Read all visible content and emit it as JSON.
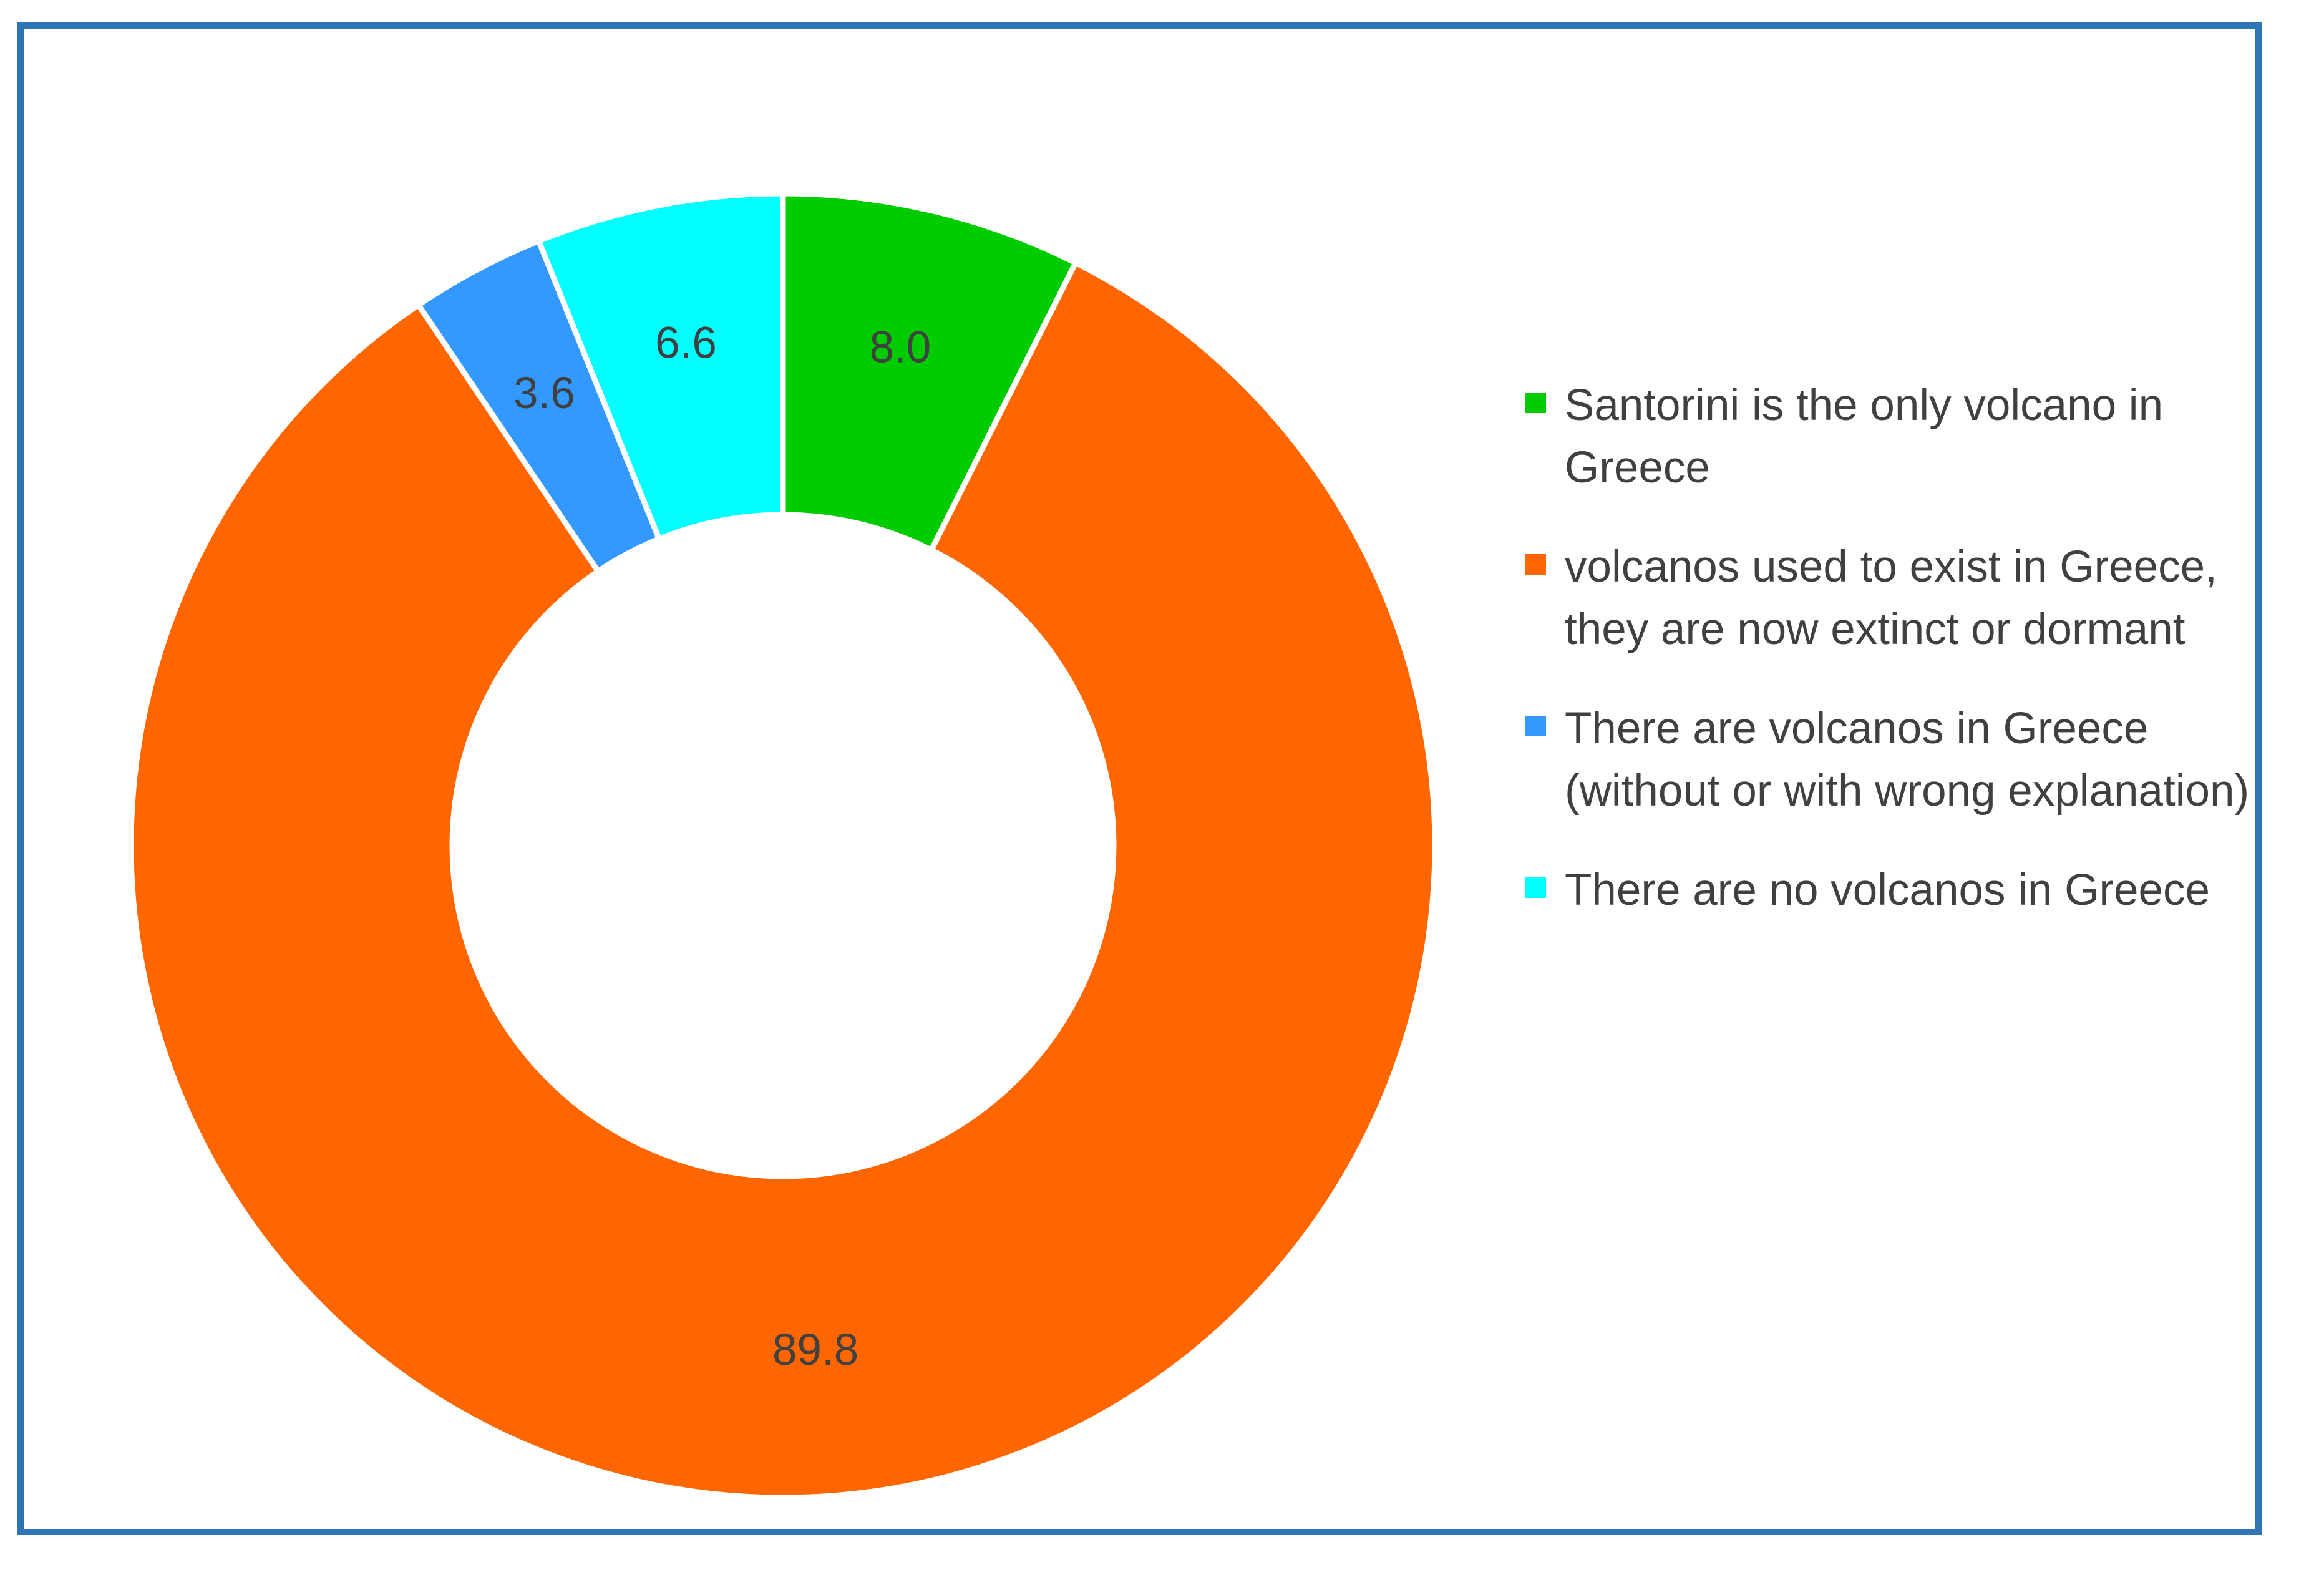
{
  "chart_data": {
    "type": "pie",
    "variant": "donut",
    "title": "",
    "series": [
      {
        "label": "Santorini is the only volcano in Greece",
        "value": 8.0,
        "value_label": "8.0",
        "color": "#00cc00"
      },
      {
        "label": "volcanos used to exist in Greece, they are now extinct or dormant",
        "value": 89.8,
        "value_label": "89.8",
        "color": "#ff6600"
      },
      {
        "label": "There are volcanos in Greece (without or with wrong explanation)",
        "value": 3.6,
        "value_label": "3.6",
        "color": "#3399ff"
      },
      {
        "label": "There are no volcanos in Greece",
        "value": 6.6,
        "value_label": "6.6",
        "color": "#00ffff"
      }
    ],
    "legend_position": "right",
    "start_angle_deg": 0,
    "direction": "clockwise"
  },
  "frame_color": "#2e75b6"
}
